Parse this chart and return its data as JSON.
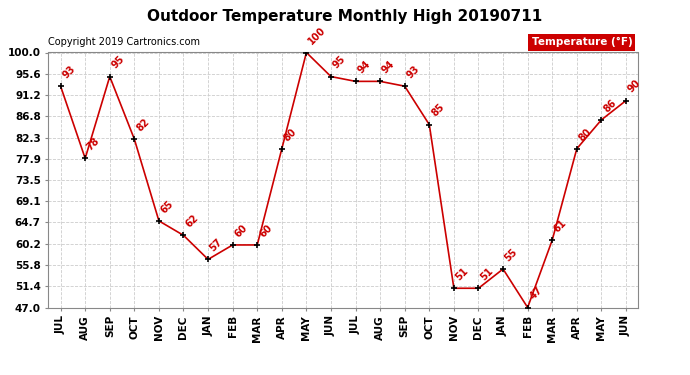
{
  "title": "Outdoor Temperature Monthly High 20190711",
  "copyright_text": "Copyright 2019 Cartronics.com",
  "legend_label": "Temperature (°F)",
  "months": [
    "JUL",
    "AUG",
    "SEP",
    "OCT",
    "NOV",
    "DEC",
    "JAN",
    "FEB",
    "MAR",
    "APR",
    "MAY",
    "JUN",
    "JUL",
    "AUG",
    "SEP",
    "OCT",
    "NOV",
    "DEC",
    "JAN",
    "FEB",
    "MAR",
    "APR",
    "MAY",
    "JUN"
  ],
  "values": [
    93,
    78,
    95,
    82,
    65,
    62,
    57,
    60,
    60,
    80,
    100,
    95,
    94,
    94,
    93,
    85,
    51,
    51,
    55,
    47,
    61,
    80,
    86,
    90
  ],
  "line_color": "#cc0000",
  "marker_color": "#000000",
  "label_color": "#cc0000",
  "background_color": "#ffffff",
  "grid_color": "#cccccc",
  "title_color": "#000000",
  "copyright_color": "#000000",
  "legend_bg": "#cc0000",
  "legend_text_color": "#ffffff",
  "ylim_min": 47.0,
  "ylim_max": 100.0,
  "yticks": [
    47.0,
    51.4,
    55.8,
    60.2,
    64.7,
    69.1,
    73.5,
    77.9,
    82.3,
    86.8,
    91.2,
    95.6,
    100.0
  ],
  "title_fontsize": 11,
  "label_fontsize": 7,
  "copyright_fontsize": 7,
  "tick_fontsize": 7.5
}
